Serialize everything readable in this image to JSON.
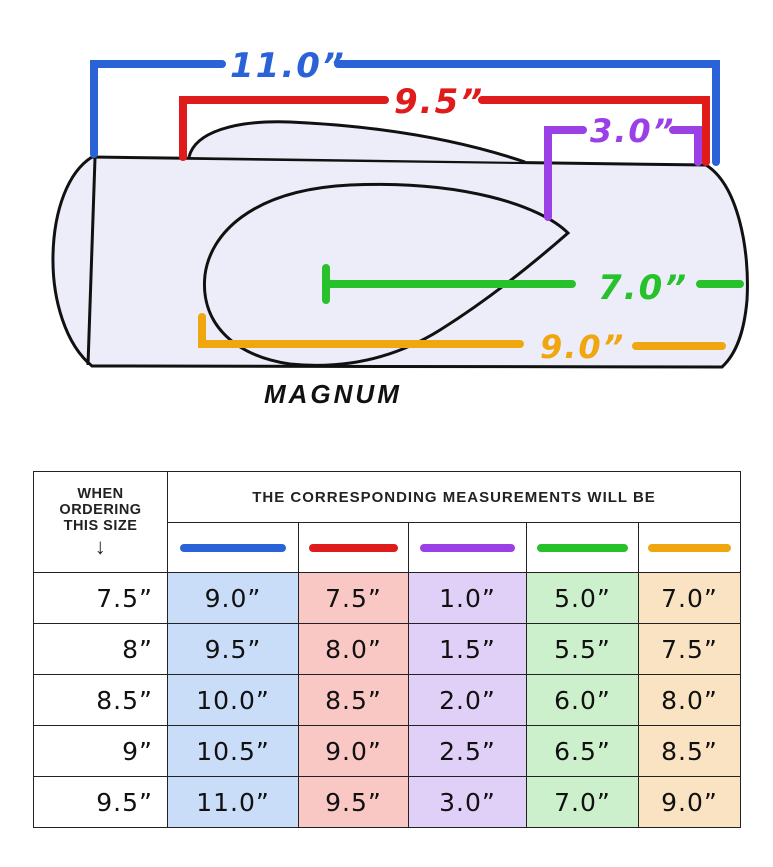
{
  "diagram": {
    "caption": "MAGNUM",
    "dimensions": [
      {
        "label": "11.0”",
        "color": "#2a63d8"
      },
      {
        "label": "9.5”",
        "color": "#e01b1b"
      },
      {
        "label": "3.0”",
        "color": "#9b3fe6"
      },
      {
        "label": "7.0”",
        "color": "#27c22b"
      },
      {
        "label": "9.0”",
        "color": "#f0a60f"
      }
    ]
  },
  "table": {
    "order_header": [
      "WHEN",
      "ORDERING",
      "THIS SIZE"
    ],
    "arrow": "↓",
    "main_header": "THE CORRESPONDING MEASUREMENTS WILL BE",
    "columns": [
      {
        "color": "#2a63d8",
        "bg": "#c9dcf8"
      },
      {
        "color": "#e01b1b",
        "bg": "#f9c8c5"
      },
      {
        "color": "#9b3fe6",
        "bg": "#e0d0f8"
      },
      {
        "color": "#27c22b",
        "bg": "#cdf0cc"
      },
      {
        "color": "#f0a60f",
        "bg": "#fae3c2"
      }
    ],
    "rows": [
      {
        "size": "7.5”",
        "values": [
          "9.0”",
          "7.5”",
          "1.0”",
          "5.0”",
          "7.0”"
        ]
      },
      {
        "size": "8”",
        "values": [
          "9.5”",
          "8.0”",
          "1.5”",
          "5.5”",
          "7.5”"
        ]
      },
      {
        "size": "8.5”",
        "values": [
          "10.0”",
          "8.5”",
          "2.0”",
          "6.0”",
          "8.0”"
        ]
      },
      {
        "size": "9”",
        "values": [
          "10.5”",
          "9.0”",
          "2.5”",
          "6.5”",
          "8.5”"
        ]
      },
      {
        "size": "9.5”",
        "values": [
          "11.0”",
          "9.5”",
          "3.0”",
          "7.0”",
          "9.0”"
        ]
      }
    ]
  }
}
